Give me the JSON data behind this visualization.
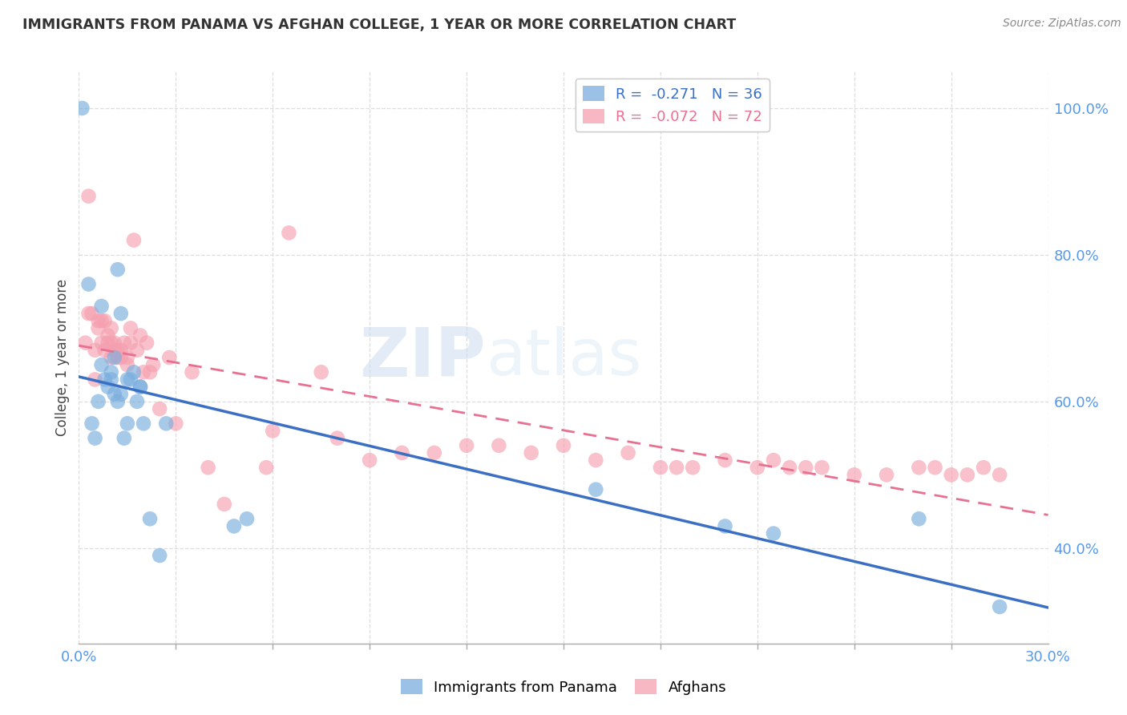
{
  "title": "IMMIGRANTS FROM PANAMA VS AFGHAN COLLEGE, 1 YEAR OR MORE CORRELATION CHART",
  "source": "Source: ZipAtlas.com",
  "ylabel": "College, 1 year or more",
  "legend_entries": [
    {
      "label": "R =  -0.271   N = 36",
      "color": "#7aaede"
    },
    {
      "label": "R =  -0.072   N = 72",
      "color": "#f5a0b0"
    }
  ],
  "legend_labels": [
    "Immigrants from Panama",
    "Afghans"
  ],
  "panama_color": "#7aaede",
  "afghan_color": "#f5a0b0",
  "panama_line_color": "#3a6fc4",
  "afghan_line_color": "#e87090",
  "watermark_zip": "ZIP",
  "watermark_atlas": "atlas",
  "xlim": [
    0.0,
    0.3
  ],
  "ylim": [
    0.27,
    1.05
  ],
  "panama_x": [
    0.001,
    0.003,
    0.004,
    0.005,
    0.006,
    0.007,
    0.007,
    0.008,
    0.009,
    0.01,
    0.01,
    0.011,
    0.011,
    0.012,
    0.012,
    0.013,
    0.013,
    0.014,
    0.015,
    0.015,
    0.016,
    0.017,
    0.018,
    0.019,
    0.019,
    0.02,
    0.022,
    0.025,
    0.027,
    0.048,
    0.052,
    0.16,
    0.2,
    0.215,
    0.26,
    0.285
  ],
  "panama_y": [
    1.0,
    0.76,
    0.57,
    0.55,
    0.6,
    0.65,
    0.73,
    0.63,
    0.62,
    0.64,
    0.63,
    0.66,
    0.61,
    0.78,
    0.6,
    0.72,
    0.61,
    0.55,
    0.57,
    0.63,
    0.63,
    0.64,
    0.6,
    0.62,
    0.62,
    0.57,
    0.44,
    0.39,
    0.57,
    0.43,
    0.44,
    0.48,
    0.43,
    0.42,
    0.44,
    0.32
  ],
  "afghan_x": [
    0.002,
    0.003,
    0.003,
    0.004,
    0.005,
    0.005,
    0.006,
    0.006,
    0.007,
    0.007,
    0.008,
    0.008,
    0.009,
    0.009,
    0.01,
    0.01,
    0.01,
    0.011,
    0.011,
    0.012,
    0.012,
    0.013,
    0.013,
    0.014,
    0.015,
    0.015,
    0.016,
    0.016,
    0.017,
    0.018,
    0.019,
    0.02,
    0.021,
    0.022,
    0.023,
    0.025,
    0.028,
    0.03,
    0.035,
    0.04,
    0.045,
    0.058,
    0.06,
    0.065,
    0.075,
    0.08,
    0.09,
    0.1,
    0.11,
    0.12,
    0.13,
    0.14,
    0.15,
    0.16,
    0.17,
    0.18,
    0.185,
    0.19,
    0.2,
    0.21,
    0.215,
    0.22,
    0.225,
    0.23,
    0.24,
    0.25,
    0.26,
    0.265,
    0.27,
    0.275,
    0.28,
    0.285
  ],
  "afghan_y": [
    0.68,
    0.72,
    0.88,
    0.72,
    0.67,
    0.63,
    0.7,
    0.71,
    0.68,
    0.71,
    0.71,
    0.67,
    0.68,
    0.69,
    0.7,
    0.66,
    0.68,
    0.68,
    0.67,
    0.66,
    0.67,
    0.67,
    0.66,
    0.68,
    0.65,
    0.66,
    0.7,
    0.68,
    0.82,
    0.67,
    0.69,
    0.64,
    0.68,
    0.64,
    0.65,
    0.59,
    0.66,
    0.57,
    0.64,
    0.51,
    0.46,
    0.51,
    0.56,
    0.83,
    0.64,
    0.55,
    0.52,
    0.53,
    0.53,
    0.54,
    0.54,
    0.53,
    0.54,
    0.52,
    0.53,
    0.51,
    0.51,
    0.51,
    0.52,
    0.51,
    0.52,
    0.51,
    0.51,
    0.51,
    0.5,
    0.5,
    0.51,
    0.51,
    0.5,
    0.5,
    0.51,
    0.5
  ]
}
